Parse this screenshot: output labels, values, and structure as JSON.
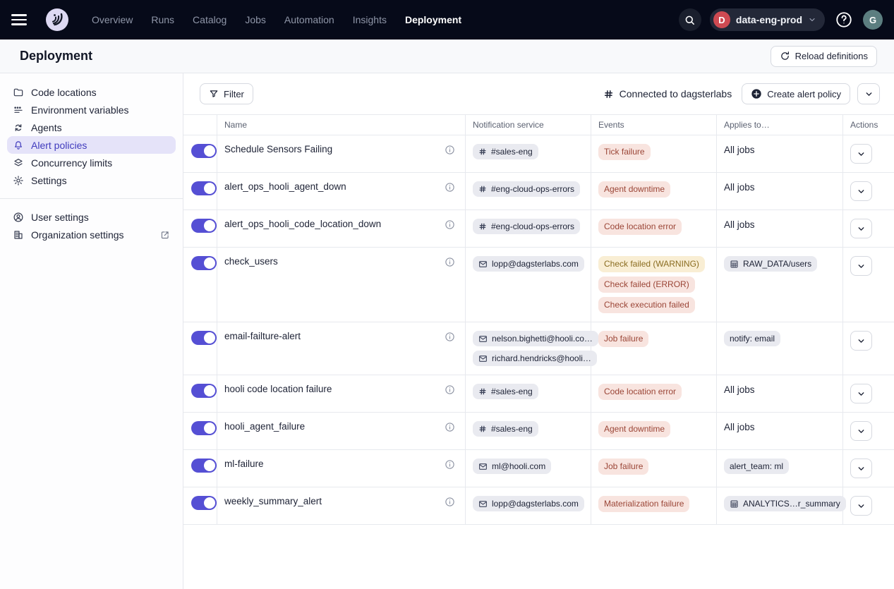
{
  "topnav": {
    "items": [
      {
        "label": "Overview",
        "active": false
      },
      {
        "label": "Runs",
        "active": false
      },
      {
        "label": "Catalog",
        "active": false
      },
      {
        "label": "Jobs",
        "active": false
      },
      {
        "label": "Automation",
        "active": false
      },
      {
        "label": "Insights",
        "active": false
      },
      {
        "label": "Deployment",
        "active": true
      }
    ],
    "switcher": {
      "initial": "D",
      "label": "data-eng-prod"
    },
    "avatar_initial": "G"
  },
  "page": {
    "title": "Deployment",
    "reload_button": "Reload definitions"
  },
  "sidebar": {
    "items": [
      {
        "label": "Code locations",
        "icon": "folder",
        "selected": false
      },
      {
        "label": "Environment variables",
        "icon": "env-vars",
        "selected": false
      },
      {
        "label": "Agents",
        "icon": "agents",
        "selected": false
      },
      {
        "label": "Alert policies",
        "icon": "bell",
        "selected": true
      },
      {
        "label": "Concurrency limits",
        "icon": "layers",
        "selected": false
      },
      {
        "label": "Settings",
        "icon": "gear",
        "selected": false
      }
    ],
    "footer_items": [
      {
        "label": "User settings",
        "icon": "user-circle",
        "external": false
      },
      {
        "label": "Organization settings",
        "icon": "building",
        "external": true
      }
    ]
  },
  "toolbar": {
    "filter_label": "Filter",
    "connected_label": "Connected to dagsterlabs",
    "create_label": "Create alert policy"
  },
  "table": {
    "headers": [
      "",
      "Name",
      "Notification service",
      "Events",
      "Applies to…",
      "Actions"
    ],
    "rows": [
      {
        "name": "Schedule Sensors Failing",
        "enabled": true,
        "notifications": [
          {
            "icon": "slack",
            "label": "#sales-eng"
          }
        ],
        "events": [
          {
            "label": "Tick failure",
            "severity": "error"
          }
        ],
        "applies": [
          {
            "kind": "text",
            "label": "All jobs"
          }
        ]
      },
      {
        "name": "alert_ops_hooli_agent_down",
        "enabled": true,
        "notifications": [
          {
            "icon": "slack",
            "label": "#eng-cloud-ops-errors"
          }
        ],
        "events": [
          {
            "label": "Agent downtime",
            "severity": "error"
          }
        ],
        "applies": [
          {
            "kind": "text",
            "label": "All jobs"
          }
        ]
      },
      {
        "name": "alert_ops_hooli_code_location_down",
        "enabled": true,
        "notifications": [
          {
            "icon": "slack",
            "label": "#eng-cloud-ops-errors"
          }
        ],
        "events": [
          {
            "label": "Code location error",
            "severity": "error"
          }
        ],
        "applies": [
          {
            "kind": "text",
            "label": "All jobs"
          }
        ]
      },
      {
        "name": "check_users",
        "enabled": true,
        "notifications": [
          {
            "icon": "email",
            "label": "lopp@dagsterlabs.com"
          }
        ],
        "events": [
          {
            "label": "Check failed (WARNING)",
            "severity": "warning"
          },
          {
            "label": "Check failed (ERROR)",
            "severity": "error"
          },
          {
            "label": "Check execution failed",
            "severity": "error"
          }
        ],
        "applies": [
          {
            "kind": "pill",
            "icon": "table",
            "label": "RAW_DATA/users"
          }
        ]
      },
      {
        "name": "email-failture-alert",
        "enabled": true,
        "notifications": [
          {
            "icon": "email",
            "label": "nelson.bighetti@hooli.co…"
          },
          {
            "icon": "email",
            "label": "richard.hendricks@hooli…"
          }
        ],
        "events": [
          {
            "label": "Job failure",
            "severity": "error"
          }
        ],
        "applies": [
          {
            "kind": "pill",
            "icon": null,
            "label": "notify: email"
          }
        ]
      },
      {
        "name": "hooli code location failure",
        "enabled": true,
        "notifications": [
          {
            "icon": "slack",
            "label": "#sales-eng"
          }
        ],
        "events": [
          {
            "label": "Code location error",
            "severity": "error"
          }
        ],
        "applies": [
          {
            "kind": "text",
            "label": "All jobs"
          }
        ]
      },
      {
        "name": "hooli_agent_failure",
        "enabled": true,
        "notifications": [
          {
            "icon": "slack",
            "label": "#sales-eng"
          }
        ],
        "events": [
          {
            "label": "Agent downtime",
            "severity": "error"
          }
        ],
        "applies": [
          {
            "kind": "text",
            "label": "All jobs"
          }
        ]
      },
      {
        "name": "ml-failure",
        "enabled": true,
        "notifications": [
          {
            "icon": "email",
            "label": "ml@hooli.com"
          }
        ],
        "events": [
          {
            "label": "Job failure",
            "severity": "error"
          }
        ],
        "applies": [
          {
            "kind": "pill",
            "icon": null,
            "label": "alert_team: ml"
          }
        ]
      },
      {
        "name": "weekly_summary_alert",
        "enabled": true,
        "notifications": [
          {
            "icon": "email",
            "label": "lopp@dagsterlabs.com"
          }
        ],
        "events": [
          {
            "label": "Materialization failure",
            "severity": "error"
          }
        ],
        "applies": [
          {
            "kind": "pill",
            "icon": "table",
            "label": "ANALYTICS…r_summary"
          }
        ]
      }
    ]
  },
  "colors": {
    "nav_background": "#060a19",
    "accent_indigo": "#554fd4",
    "selected_sidebar_bg": "#e5e3f9",
    "badge_error_bg": "#f8e4df",
    "badge_error_text": "#9b4637",
    "badge_warning_bg": "#f9eed4",
    "badge_warning_text": "#8a6c20",
    "neutral_pill_bg": "#e9eaf0",
    "deployment_badge": "#ce4a52"
  }
}
